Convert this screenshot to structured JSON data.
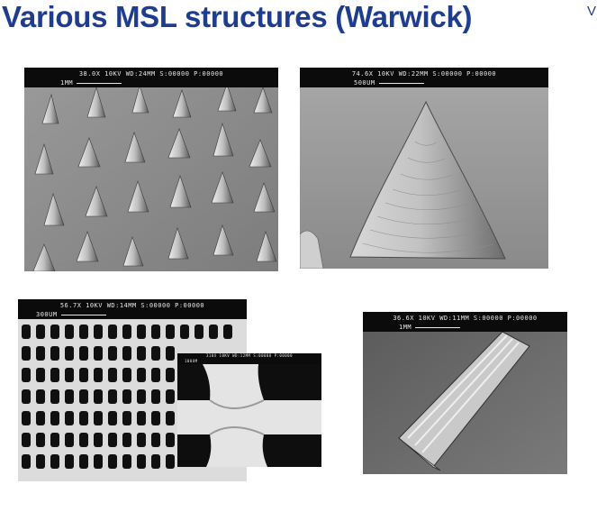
{
  "slide": {
    "title": "Various MSL structures (Warwick)",
    "corner_text": "V"
  },
  "images": [
    {
      "readout": "38.0X   10KV WD:24MM   S:00000 P:00000",
      "scale_label": "1MM"
    },
    {
      "readout": "74.6X   10KV WD:22MM   S:00000 P:00000",
      "scale_label": "500UM"
    },
    {
      "readout": "56.7X   10KV WD:14MM   S:00000 P:00000",
      "scale_label": "300UM"
    },
    {
      "readout": "36.6X   10KV WD:11MM   S:00000 P:00000",
      "scale_label": "1MM"
    }
  ],
  "inset": {
    "readout": "310X   10KV WD:12MM   S:00000 P:00000",
    "scale_label": "100UM"
  },
  "colors": {
    "title": "#1f3d8f",
    "hud_bg": "#0b0b0b"
  }
}
